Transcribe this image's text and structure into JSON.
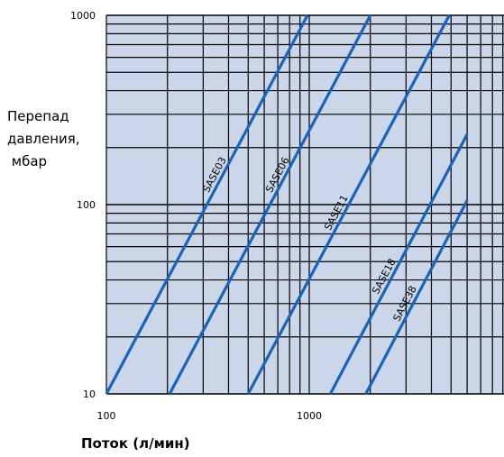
{
  "chart_data": {
    "type": "line",
    "title": "",
    "xlabel": "Поток (л/мин)",
    "ylabel": [
      "Перепад",
      "давления,",
      " мбар"
    ],
    "x_scale": "log",
    "y_scale": "log",
    "xlim": [
      100,
      6000
    ],
    "ylim": [
      10,
      1000
    ],
    "x_ticks": [
      {
        "value": 100,
        "label": "100"
      },
      {
        "value": 1000,
        "label": "1000"
      }
    ],
    "y_ticks": [
      {
        "value": 10,
        "label": "10"
      },
      {
        "value": 100,
        "label": "100"
      },
      {
        "value": 1000,
        "label": "1000"
      }
    ],
    "grid": true,
    "background": "#ccd6ea",
    "line_color": "#1a63b8",
    "series": [
      {
        "name": "SASE03",
        "points": [
          [
            100,
            10
          ],
          [
            980,
            1000
          ]
        ]
      },
      {
        "name": "SASE06",
        "points": [
          [
            205,
            10
          ],
          [
            2000,
            1000
          ]
        ]
      },
      {
        "name": "SASE11",
        "points": [
          [
            500,
            10
          ],
          [
            4900,
            1000
          ]
        ]
      },
      {
        "name": "SASE18",
        "points": [
          [
            1270,
            10
          ],
          [
            6000,
            235
          ]
        ]
      },
      {
        "name": "SASE38",
        "points": [
          [
            1900,
            10
          ],
          [
            6000,
            105
          ]
        ]
      }
    ]
  }
}
